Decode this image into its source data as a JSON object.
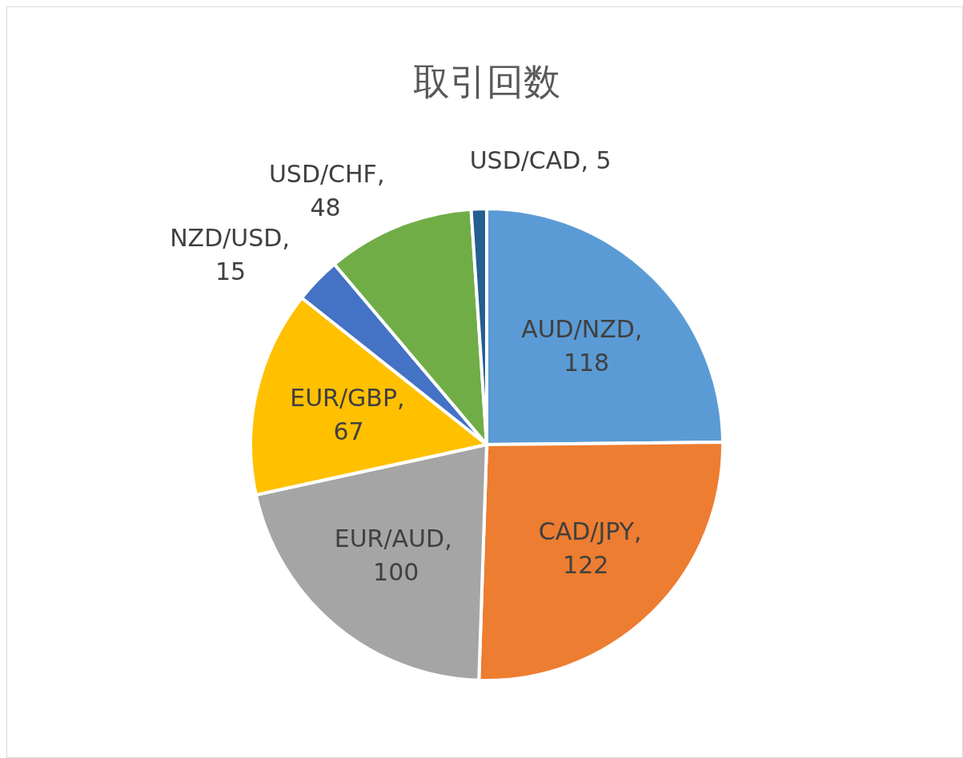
{
  "chart_data": {
    "type": "pie",
    "title": "取引回数",
    "categories": [
      "AUD/NZD",
      "CAD/JPY",
      "EUR/AUD",
      "EUR/GBP",
      "NZD/USD",
      "USD/CHF",
      "USD/CAD"
    ],
    "values": [
      118,
      122,
      100,
      67,
      15,
      48,
      5
    ],
    "colors": [
      "#5b9bd5",
      "#ed7d31",
      "#a5a5a5",
      "#ffc000",
      "#4472c4",
      "#70ad47",
      "#255e91"
    ],
    "value_labels": [
      ", 118",
      ", 122",
      ", 100",
      ", 67",
      ", 15",
      ", 48",
      ", 5"
    ],
    "legend": false
  }
}
